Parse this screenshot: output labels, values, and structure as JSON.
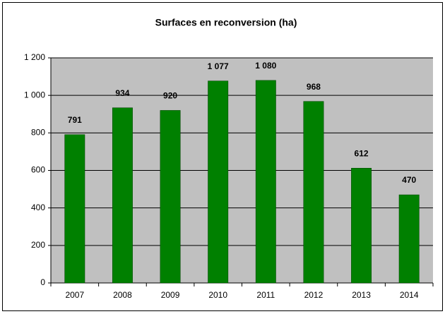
{
  "chart_data": {
    "type": "bar",
    "title": "Surfaces en reconversion (ha)",
    "categories": [
      "2007",
      "2008",
      "2009",
      "2010",
      "2011",
      "2012",
      "2013",
      "2014"
    ],
    "values": [
      791,
      934,
      920,
      1077,
      1080,
      968,
      612,
      470
    ],
    "value_labels": [
      "791",
      "934",
      "920",
      "1 077",
      "1 080",
      "968",
      "612",
      "470"
    ],
    "color": "#008000",
    "ylim": [
      0,
      1200
    ],
    "yticks": [
      0,
      200,
      400,
      600,
      800,
      {
        "value": 1000,
        "label": "1 000"
      },
      {
        "value": 1200,
        "label": "1 200"
      }
    ],
    "grid": true
  }
}
